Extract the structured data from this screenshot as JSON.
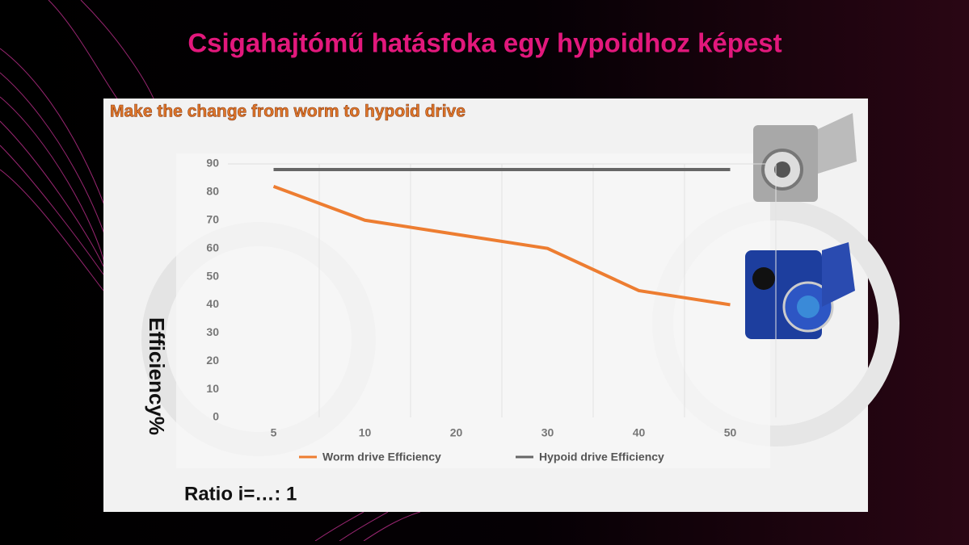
{
  "slide_title": "Csigahajtómű hatásfoka egy hypoidhoz képest",
  "chart_data": {
    "type": "line",
    "title": "Make the change from worm to hypoid drive",
    "y_label": "Efficiency%",
    "x_label": "Ratio i=…:  1",
    "categories": [
      "5",
      "10",
      "20",
      "30",
      "40",
      "50"
    ],
    "series": [
      {
        "name": "Worm drive Efficiency",
        "color": "#ed7d31",
        "values": [
          82,
          70,
          65,
          60,
          45,
          40
        ]
      },
      {
        "name": "Hypoid drive Efficiency",
        "color": "#666666",
        "values": [
          88,
          88,
          88,
          88,
          88,
          88
        ]
      }
    ],
    "ylim": [
      0,
      90
    ],
    "yticks": [
      0,
      10,
      20,
      30,
      40,
      50,
      60,
      70,
      80,
      90
    ],
    "grid": true,
    "legend": "bottom"
  }
}
